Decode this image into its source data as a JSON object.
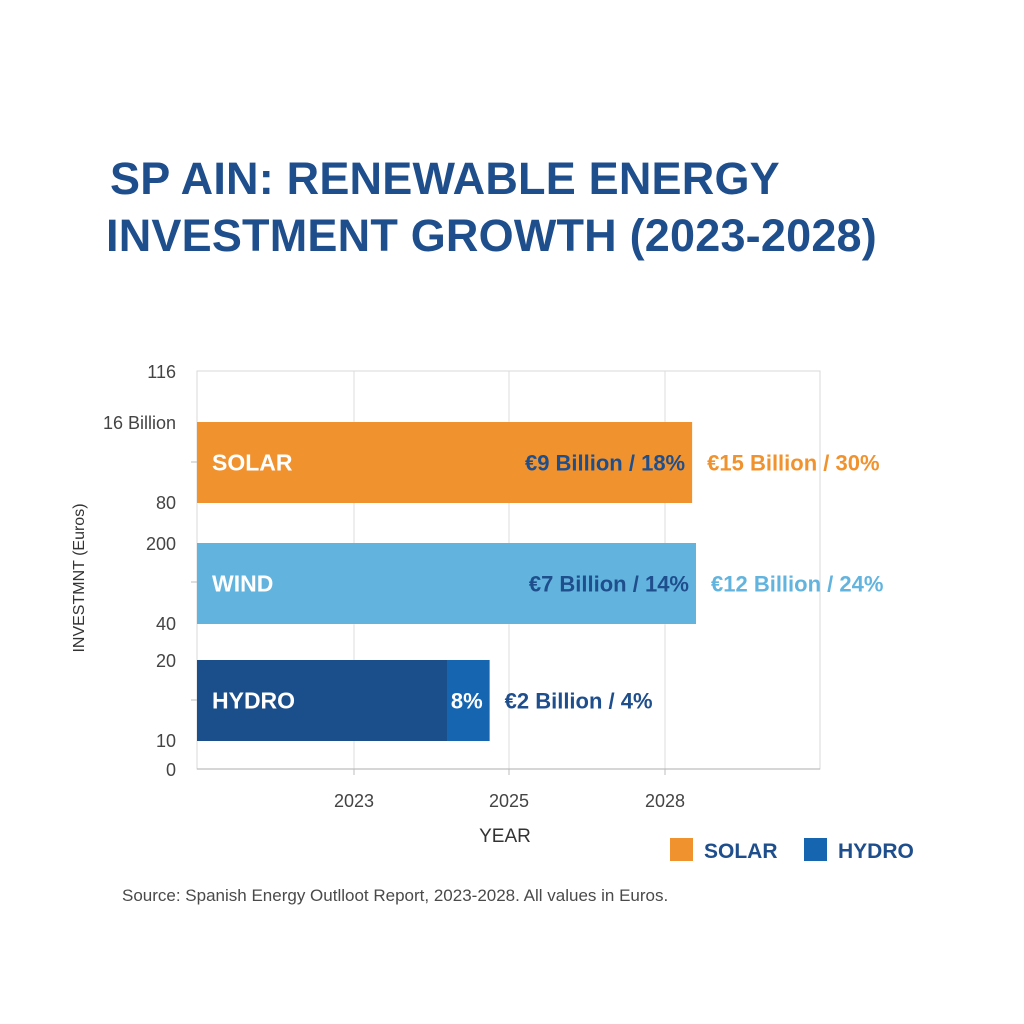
{
  "chart_data": {
    "type": "bar",
    "orientation": "horizontal",
    "title_lines": [
      "SP AIN: RENEWABLE ENERGY",
      "INVESTMENT GROWTH (2023-2028)"
    ],
    "xlabel": "YEAR",
    "ylabel": "INVESTMNT (Euros)",
    "x_tick_labels": [
      "2023",
      "2025",
      "2028"
    ],
    "x_ticks": [
      2023,
      2025,
      2028
    ],
    "xlim": [
      2021,
      2030
    ],
    "y_tick_labels": [
      "116",
      "16 Billion",
      "80",
      "200",
      "40",
      "20",
      "10",
      "0"
    ],
    "grid": true,
    "legend_position": "bottom-right",
    "series": [
      {
        "name": "SOLAR",
        "color": "#f0922e",
        "x_start": 2021,
        "x_end": 2028.35,
        "inner_label": "€9 Billion / 18%",
        "inner_label_color": "#1f4e8c",
        "outer_label": "€15 Billion / 30%",
        "outer_label_color": "#f0922e"
      },
      {
        "name": "WIND",
        "color": "#62b4df",
        "x_start": 2021,
        "x_end": 2028.4,
        "inner_label": "€7 Billion / 14%",
        "inner_label_color": "#1f4e8c",
        "outer_label": "€12 Billion / 24%",
        "outer_label_color": "#62b4df"
      },
      {
        "name": "HYDRO",
        "color": "#1b4f8c",
        "x_start": 2021,
        "x_end": 2024.2,
        "segment_color": "#1565b0",
        "segment_x_end": 2024.75,
        "inner_label": "8%",
        "inner_label_color": "#ffffff",
        "outer_label": "€2 Billion / 4%",
        "outer_label_color": "#1f4e8c"
      }
    ],
    "legend": [
      {
        "label": "SOLAR",
        "color": "#f0922e"
      },
      {
        "label": "HYDRO",
        "color": "#1565b0"
      }
    ],
    "source_note": "Source: Spanish Energy Outlloot Report, 2023-2028. All values in Euros."
  }
}
